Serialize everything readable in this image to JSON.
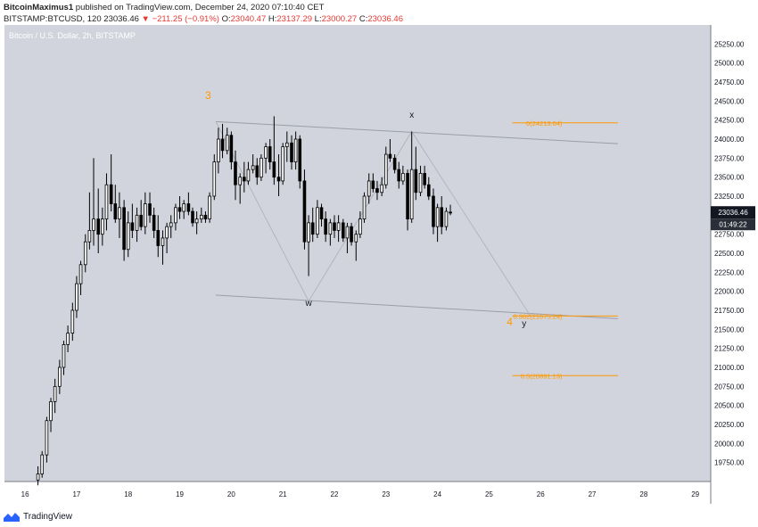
{
  "header": {
    "author": "BitcoinMaximus1",
    "published": "published on TradingView.com, December 24, 2020 07:10:40 CET",
    "symbol": "BITSTAMP:BTCUSD, 120",
    "price": "23036.46",
    "change": "▼ −211.25 (−0.91%)",
    "o_label": "O:",
    "o": "23040.47",
    "h_label": "H:",
    "h": "23137.29",
    "l_label": "L:",
    "l": "23000.27",
    "c_label": "C:",
    "c": "23036.46"
  },
  "chart_title": "Bitcoin / U.S. Dollar, 2h, BITSTAMP",
  "footer": {
    "brand": "TradingView"
  },
  "colors": {
    "plot_bg": "#d1d4dc",
    "candle": "#000000",
    "wick": "#000000",
    "fib": "#ff9800",
    "wave_label": "#ff9800",
    "trendline": "#9a9ea8",
    "change_negative": "#e53935"
  },
  "chart_data": {
    "type": "candlestick",
    "y_unit": "USD",
    "ylim": [
      19500,
      25500
    ],
    "xlim": [
      15.6,
      29.3
    ],
    "y_ticks": [
      19750,
      20000,
      20250,
      20500,
      20750,
      21000,
      21250,
      21500,
      21750,
      22000,
      22250,
      22500,
      22750,
      23000,
      23250,
      23500,
      23750,
      24000,
      24250,
      24500,
      24750,
      25000,
      25250
    ],
    "x_ticks": [
      16,
      17,
      18,
      19,
      20,
      21,
      22,
      23,
      24,
      25,
      26,
      27,
      28,
      29
    ],
    "current_price_label": "23036.46",
    "countdown_label": "01:49:22",
    "current_price": 23036.46,
    "fib_levels": [
      {
        "label": "0(24213.64)",
        "value": 24213.64
      },
      {
        "label": "0.382(21675.24)",
        "value": 21675.24
      },
      {
        "label": "0.5(20891.13)",
        "value": 20891.13
      }
    ],
    "wave_labels": [
      {
        "text": "3",
        "x": 19.55,
        "y": 24530,
        "color": "orange"
      },
      {
        "text": "x",
        "x": 23.5,
        "y": 24280,
        "color": "dark"
      },
      {
        "text": "w",
        "x": 21.5,
        "y": 21810,
        "color": "dark"
      },
      {
        "text": "4",
        "x": 25.4,
        "y": 21550,
        "color": "orange"
      },
      {
        "text": "y",
        "x": 25.68,
        "y": 21540,
        "color": "dark"
      }
    ],
    "channel_lines": [
      {
        "x1": 19.7,
        "y1": 24230,
        "x2": 27.5,
        "y2": 23940
      },
      {
        "x1": 19.7,
        "y1": 21950,
        "x2": 27.5,
        "y2": 21640
      }
    ],
    "wave_path": [
      [
        19.7,
        24230
      ],
      [
        21.5,
        21870
      ],
      [
        23.5,
        24100
      ],
      [
        25.8,
        21680
      ]
    ],
    "candles": [
      {
        "t": 16.25,
        "o": 19520,
        "h": 19700,
        "l": 19450,
        "c": 19600
      },
      {
        "t": 16.33,
        "o": 19600,
        "h": 19900,
        "l": 19550,
        "c": 19850
      },
      {
        "t": 16.42,
        "o": 19850,
        "h": 20350,
        "l": 19750,
        "c": 20300
      },
      {
        "t": 16.5,
        "o": 20300,
        "h": 20600,
        "l": 20150,
        "c": 20550
      },
      {
        "t": 16.58,
        "o": 20550,
        "h": 20850,
        "l": 20400,
        "c": 20750
      },
      {
        "t": 16.67,
        "o": 20750,
        "h": 21100,
        "l": 20650,
        "c": 21000
      },
      {
        "t": 16.75,
        "o": 21000,
        "h": 21350,
        "l": 20900,
        "c": 21300
      },
      {
        "t": 16.83,
        "o": 21300,
        "h": 21550,
        "l": 21200,
        "c": 21450
      },
      {
        "t": 16.92,
        "o": 21450,
        "h": 21850,
        "l": 21350,
        "c": 21750
      },
      {
        "t": 17.0,
        "o": 21750,
        "h": 22200,
        "l": 21650,
        "c": 22100
      },
      {
        "t": 17.08,
        "o": 22100,
        "h": 22400,
        "l": 21950,
        "c": 22350
      },
      {
        "t": 17.17,
        "o": 22350,
        "h": 22750,
        "l": 22250,
        "c": 22650
      },
      {
        "t": 17.25,
        "o": 22650,
        "h": 23300,
        "l": 22550,
        "c": 22800
      },
      {
        "t": 17.33,
        "o": 22800,
        "h": 23750,
        "l": 22600,
        "c": 22950
      },
      {
        "t": 17.42,
        "o": 22950,
        "h": 23350,
        "l": 22500,
        "c": 22750
      },
      {
        "t": 17.5,
        "o": 22750,
        "h": 23100,
        "l": 22600,
        "c": 22950
      },
      {
        "t": 17.58,
        "o": 22950,
        "h": 23550,
        "l": 22800,
        "c": 23400
      },
      {
        "t": 17.67,
        "o": 23400,
        "h": 23800,
        "l": 23050,
        "c": 23150
      },
      {
        "t": 17.75,
        "o": 23150,
        "h": 23400,
        "l": 22900,
        "c": 22950
      },
      {
        "t": 17.83,
        "o": 22950,
        "h": 23300,
        "l": 22700,
        "c": 23100
      },
      {
        "t": 17.92,
        "o": 23100,
        "h": 23200,
        "l": 22400,
        "c": 22550
      },
      {
        "t": 18.0,
        "o": 22550,
        "h": 23050,
        "l": 22450,
        "c": 22900
      },
      {
        "t": 18.08,
        "o": 22900,
        "h": 23150,
        "l": 22700,
        "c": 22800
      },
      {
        "t": 18.17,
        "o": 22800,
        "h": 23100,
        "l": 22650,
        "c": 23000
      },
      {
        "t": 18.25,
        "o": 23000,
        "h": 23200,
        "l": 22800,
        "c": 22850
      },
      {
        "t": 18.33,
        "o": 22850,
        "h": 23300,
        "l": 22750,
        "c": 23150
      },
      {
        "t": 18.42,
        "o": 23150,
        "h": 23300,
        "l": 22900,
        "c": 23000
      },
      {
        "t": 18.5,
        "o": 23000,
        "h": 23100,
        "l": 22700,
        "c": 22800
      },
      {
        "t": 18.58,
        "o": 22800,
        "h": 23000,
        "l": 22450,
        "c": 22600
      },
      {
        "t": 18.67,
        "o": 22600,
        "h": 22800,
        "l": 22350,
        "c": 22700
      },
      {
        "t": 18.75,
        "o": 22700,
        "h": 22900,
        "l": 22500,
        "c": 22850
      },
      {
        "t": 18.83,
        "o": 22850,
        "h": 23000,
        "l": 22700,
        "c": 22900
      },
      {
        "t": 18.92,
        "o": 22900,
        "h": 23150,
        "l": 22800,
        "c": 23100
      },
      {
        "t": 19.0,
        "o": 23100,
        "h": 23250,
        "l": 22950,
        "c": 23050
      },
      {
        "t": 19.08,
        "o": 23050,
        "h": 23200,
        "l": 22950,
        "c": 23150
      },
      {
        "t": 19.17,
        "o": 23150,
        "h": 23300,
        "l": 23000,
        "c": 23050
      },
      {
        "t": 19.25,
        "o": 23050,
        "h": 23100,
        "l": 22850,
        "c": 22900
      },
      {
        "t": 19.33,
        "o": 22900,
        "h": 23050,
        "l": 22750,
        "c": 22950
      },
      {
        "t": 19.42,
        "o": 22950,
        "h": 23100,
        "l": 22900,
        "c": 23000
      },
      {
        "t": 19.5,
        "o": 23000,
        "h": 23050,
        "l": 22900,
        "c": 22950
      },
      {
        "t": 19.58,
        "o": 22950,
        "h": 23300,
        "l": 22900,
        "c": 23250
      },
      {
        "t": 19.67,
        "o": 23250,
        "h": 23800,
        "l": 23200,
        "c": 23700
      },
      {
        "t": 19.75,
        "o": 23700,
        "h": 24150,
        "l": 23550,
        "c": 24000
      },
      {
        "t": 19.83,
        "o": 24000,
        "h": 24200,
        "l": 23750,
        "c": 23850
      },
      {
        "t": 19.92,
        "o": 23850,
        "h": 24150,
        "l": 23800,
        "c": 24050
      },
      {
        "t": 20.0,
        "o": 24050,
        "h": 24100,
        "l": 23600,
        "c": 23700
      },
      {
        "t": 20.08,
        "o": 23700,
        "h": 23850,
        "l": 23200,
        "c": 23400
      },
      {
        "t": 20.17,
        "o": 23400,
        "h": 23550,
        "l": 23150,
        "c": 23500
      },
      {
        "t": 20.25,
        "o": 23500,
        "h": 23700,
        "l": 23300,
        "c": 23450
      },
      {
        "t": 20.33,
        "o": 23450,
        "h": 23700,
        "l": 23400,
        "c": 23600
      },
      {
        "t": 20.42,
        "o": 23600,
        "h": 23800,
        "l": 23550,
        "c": 23650
      },
      {
        "t": 20.5,
        "o": 23650,
        "h": 23750,
        "l": 23400,
        "c": 23500
      },
      {
        "t": 20.58,
        "o": 23500,
        "h": 23800,
        "l": 23450,
        "c": 23750
      },
      {
        "t": 20.67,
        "o": 23750,
        "h": 23950,
        "l": 23550,
        "c": 23900
      },
      {
        "t": 20.75,
        "o": 23900,
        "h": 24000,
        "l": 23600,
        "c": 23700
      },
      {
        "t": 20.83,
        "o": 23700,
        "h": 24300,
        "l": 23400,
        "c": 23500
      },
      {
        "t": 20.92,
        "o": 23500,
        "h": 23800,
        "l": 23250,
        "c": 23450
      },
      {
        "t": 21.0,
        "o": 23450,
        "h": 23950,
        "l": 23400,
        "c": 23900
      },
      {
        "t": 21.08,
        "o": 23900,
        "h": 24100,
        "l": 23700,
        "c": 23950
      },
      {
        "t": 21.17,
        "o": 23950,
        "h": 24050,
        "l": 23600,
        "c": 23700
      },
      {
        "t": 21.25,
        "o": 23700,
        "h": 24100,
        "l": 23600,
        "c": 24000
      },
      {
        "t": 21.33,
        "o": 24000,
        "h": 24050,
        "l": 23350,
        "c": 23450
      },
      {
        "t": 21.42,
        "o": 23450,
        "h": 23600,
        "l": 22550,
        "c": 22650
      },
      {
        "t": 21.5,
        "o": 22650,
        "h": 23000,
        "l": 22200,
        "c": 22900
      },
      {
        "t": 21.58,
        "o": 22900,
        "h": 23100,
        "l": 22650,
        "c": 22750
      },
      {
        "t": 21.67,
        "o": 22750,
        "h": 23200,
        "l": 22700,
        "c": 23100
      },
      {
        "t": 21.75,
        "o": 23100,
        "h": 23150,
        "l": 22850,
        "c": 22950
      },
      {
        "t": 21.83,
        "o": 22950,
        "h": 23050,
        "l": 22650,
        "c": 22750
      },
      {
        "t": 21.92,
        "o": 22750,
        "h": 22950,
        "l": 22600,
        "c": 22900
      },
      {
        "t": 22.0,
        "o": 22900,
        "h": 23000,
        "l": 22700,
        "c": 22800
      },
      {
        "t": 22.08,
        "o": 22800,
        "h": 23000,
        "l": 22650,
        "c": 22900
      },
      {
        "t": 22.17,
        "o": 22900,
        "h": 22950,
        "l": 22650,
        "c": 22700
      },
      {
        "t": 22.25,
        "o": 22700,
        "h": 22900,
        "l": 22500,
        "c": 22850
      },
      {
        "t": 22.33,
        "o": 22850,
        "h": 22900,
        "l": 22600,
        "c": 22650
      },
      {
        "t": 22.42,
        "o": 22650,
        "h": 22800,
        "l": 22400,
        "c": 22750
      },
      {
        "t": 22.5,
        "o": 22750,
        "h": 23050,
        "l": 22700,
        "c": 22950
      },
      {
        "t": 22.58,
        "o": 22950,
        "h": 23300,
        "l": 22900,
        "c": 23250
      },
      {
        "t": 22.67,
        "o": 23250,
        "h": 23550,
        "l": 23150,
        "c": 23450
      },
      {
        "t": 22.75,
        "o": 23450,
        "h": 23550,
        "l": 23300,
        "c": 23350
      },
      {
        "t": 22.83,
        "o": 23350,
        "h": 23450,
        "l": 23200,
        "c": 23300
      },
      {
        "t": 22.92,
        "o": 23300,
        "h": 23500,
        "l": 23250,
        "c": 23400
      },
      {
        "t": 23.0,
        "o": 23400,
        "h": 23900,
        "l": 23350,
        "c": 23800
      },
      {
        "t": 23.08,
        "o": 23800,
        "h": 24000,
        "l": 23700,
        "c": 23750
      },
      {
        "t": 23.17,
        "o": 23750,
        "h": 23800,
        "l": 23550,
        "c": 23600
      },
      {
        "t": 23.25,
        "o": 23600,
        "h": 23700,
        "l": 23350,
        "c": 23450
      },
      {
        "t": 23.33,
        "o": 23450,
        "h": 23650,
        "l": 23400,
        "c": 23550
      },
      {
        "t": 23.42,
        "o": 23550,
        "h": 23600,
        "l": 22800,
        "c": 22950
      },
      {
        "t": 23.5,
        "o": 22950,
        "h": 24100,
        "l": 22900,
        "c": 23600
      },
      {
        "t": 23.58,
        "o": 23600,
        "h": 23900,
        "l": 23200,
        "c": 23300
      },
      {
        "t": 23.67,
        "o": 23300,
        "h": 23650,
        "l": 23250,
        "c": 23550
      },
      {
        "t": 23.75,
        "o": 23550,
        "h": 23650,
        "l": 23350,
        "c": 23400
      },
      {
        "t": 23.83,
        "o": 23400,
        "h": 23500,
        "l": 23200,
        "c": 23250
      },
      {
        "t": 23.92,
        "o": 23250,
        "h": 23350,
        "l": 22750,
        "c": 22850
      },
      {
        "t": 24.0,
        "o": 22850,
        "h": 23150,
        "l": 22650,
        "c": 23100
      },
      {
        "t": 24.08,
        "o": 23100,
        "h": 23250,
        "l": 22750,
        "c": 22850
      },
      {
        "t": 24.17,
        "o": 22850,
        "h": 23100,
        "l": 22800,
        "c": 23050
      },
      {
        "t": 24.25,
        "o": 23040.47,
        "h": 23137.29,
        "l": 23000.27,
        "c": 23036.46
      }
    ]
  }
}
